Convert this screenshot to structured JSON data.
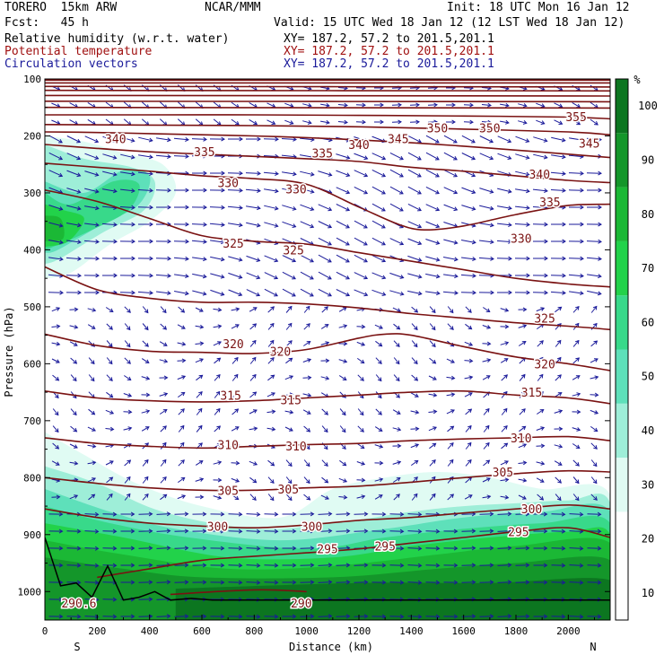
{
  "header": {
    "model": "TORERO  15km ARW",
    "org": "NCAR/MMM",
    "init": "Init: 18 UTC Mon 16 Jan 12",
    "fcst": "Fcst:   45 h",
    "valid": "Valid: 15 UTC Wed 18 Jan 12 (12 LST Wed 18 Jan 12)",
    "fields": [
      {
        "label": "Relative humidity (w.r.t. water)",
        "xy": "XY= 187.2, 57.2 to 201.5,201.1"
      },
      {
        "label": "Potential temperature",
        "xy": "XY= 187.2, 57.2 to 201.5,201.1"
      },
      {
        "label": "Circulation vectors",
        "xy": "XY= 187.2, 57.2 to 201.5,201.1"
      }
    ]
  },
  "colors": {
    "contour": "#7a1212",
    "vector": "#1a1a9a",
    "terrain": "#000000"
  },
  "chart_data": {
    "type": "heatmap",
    "xlabel": "Distance (km)",
    "ylabel": "Pressure (hPa)",
    "xlim": [
      0,
      2160
    ],
    "ylim": [
      1050,
      100
    ],
    "xticks": [
      0,
      200,
      400,
      600,
      800,
      1000,
      1200,
      1400,
      1600,
      1800,
      2000
    ],
    "yticks": [
      100,
      200,
      300,
      400,
      500,
      600,
      700,
      800,
      900,
      1000
    ],
    "x_end_labels": {
      "left": "S",
      "right": "N"
    },
    "colorbar": {
      "unit": "%",
      "levels": [
        10,
        20,
        30,
        40,
        50,
        60,
        70,
        80,
        90,
        100
      ],
      "colors": [
        "#ffffff",
        "#ffffff",
        "#e0fbf3",
        "#9eeed8",
        "#5ee0ba",
        "#38d98a",
        "#22d24a",
        "#1bb835",
        "#14962a",
        "#0c7620"
      ]
    },
    "theta_contours": [
      {
        "value": 290,
        "label": "290",
        "points": [
          [
            480,
            1005
          ],
          [
            800,
            997
          ],
          [
            1000,
            1000
          ]
        ]
      },
      {
        "value": 295,
        "label": "295",
        "points": [
          [
            200,
            975
          ],
          [
            400,
            960
          ],
          [
            600,
            945
          ],
          [
            800,
            938
          ],
          [
            1000,
            932
          ],
          [
            1200,
            925
          ],
          [
            1400,
            915
          ],
          [
            1600,
            905
          ],
          [
            1800,
            895
          ],
          [
            2000,
            888
          ],
          [
            2160,
            905
          ]
        ]
      },
      {
        "value": 300,
        "label": "300",
        "points": [
          [
            0,
            855
          ],
          [
            200,
            870
          ],
          [
            400,
            880
          ],
          [
            600,
            885
          ],
          [
            800,
            888
          ],
          [
            1000,
            883
          ],
          [
            1200,
            875
          ],
          [
            1400,
            870
          ],
          [
            1600,
            862
          ],
          [
            1800,
            855
          ],
          [
            2000,
            848
          ],
          [
            2160,
            855
          ]
        ]
      },
      {
        "value": 305,
        "label": "305",
        "points": [
          [
            0,
            800
          ],
          [
            200,
            810
          ],
          [
            400,
            818
          ],
          [
            600,
            822
          ],
          [
            800,
            822
          ],
          [
            1000,
            818
          ],
          [
            1200,
            815
          ],
          [
            1400,
            808
          ],
          [
            1600,
            800
          ],
          [
            1800,
            793
          ],
          [
            2000,
            788
          ],
          [
            2160,
            790
          ]
        ]
      },
      {
        "value": 310,
        "label": "310",
        "points": [
          [
            0,
            730
          ],
          [
            200,
            740
          ],
          [
            400,
            745
          ],
          [
            600,
            748
          ],
          [
            800,
            745
          ],
          [
            1000,
            742
          ],
          [
            1200,
            740
          ],
          [
            1400,
            735
          ],
          [
            1600,
            732
          ],
          [
            1800,
            730
          ],
          [
            2000,
            728
          ],
          [
            2160,
            735
          ]
        ]
      },
      {
        "value": 315,
        "label": "315",
        "points": [
          [
            0,
            648
          ],
          [
            200,
            660
          ],
          [
            400,
            665
          ],
          [
            600,
            667
          ],
          [
            800,
            665
          ],
          [
            1000,
            660
          ],
          [
            1200,
            655
          ],
          [
            1400,
            650
          ],
          [
            1600,
            648
          ],
          [
            1800,
            655
          ],
          [
            2000,
            660
          ],
          [
            2160,
            670
          ]
        ]
      },
      {
        "value": 320,
        "label": "320",
        "points": [
          [
            0,
            548
          ],
          [
            200,
            568
          ],
          [
            400,
            578
          ],
          [
            600,
            580
          ],
          [
            800,
            582
          ],
          [
            1000,
            575
          ],
          [
            1200,
            555
          ],
          [
            1300,
            548
          ],
          [
            1400,
            550
          ],
          [
            1600,
            570
          ],
          [
            1800,
            588
          ],
          [
            2000,
            600
          ],
          [
            2160,
            612
          ]
        ]
      },
      {
        "value": 325,
        "label": "325",
        "points": [
          [
            0,
            430
          ],
          [
            200,
            470
          ],
          [
            400,
            485
          ],
          [
            600,
            492
          ],
          [
            800,
            492
          ],
          [
            1000,
            495
          ],
          [
            1200,
            502
          ],
          [
            1400,
            512
          ],
          [
            1600,
            520
          ],
          [
            1800,
            528
          ],
          [
            2000,
            534
          ],
          [
            2160,
            540
          ]
        ]
      },
      {
        "value": 330,
        "label": "330",
        "points": [
          [
            0,
            295
          ],
          [
            200,
            315
          ],
          [
            400,
            345
          ],
          [
            600,
            375
          ],
          [
            800,
            385
          ],
          [
            1000,
            390
          ],
          [
            1200,
            405
          ],
          [
            1400,
            420
          ],
          [
            1600,
            435
          ],
          [
            1800,
            450
          ],
          [
            2000,
            460
          ],
          [
            2160,
            465
          ]
        ]
      },
      {
        "value": 335,
        "label": "335",
        "points": [
          [
            0,
            248
          ],
          [
            200,
            255
          ],
          [
            400,
            262
          ],
          [
            600,
            270
          ],
          [
            800,
            275
          ],
          [
            1000,
            285
          ],
          [
            1200,
            325
          ],
          [
            1350,
            355
          ],
          [
            1450,
            365
          ],
          [
            1600,
            358
          ],
          [
            1800,
            338
          ],
          [
            2000,
            322
          ],
          [
            2160,
            320
          ]
        ]
      },
      {
        "value": 340,
        "label": "340",
        "points": [
          [
            0,
            215
          ],
          [
            200,
            222
          ],
          [
            400,
            228
          ],
          [
            600,
            232
          ],
          [
            800,
            236
          ],
          [
            1000,
            240
          ],
          [
            1200,
            245
          ],
          [
            1400,
            255
          ],
          [
            1600,
            262
          ],
          [
            1800,
            270
          ],
          [
            2000,
            278
          ],
          [
            2160,
            282
          ]
        ]
      },
      {
        "value": 345,
        "label": "345",
        "points": [
          [
            0,
            193
          ],
          [
            200,
            194
          ],
          [
            400,
            196
          ],
          [
            600,
            198
          ],
          [
            800,
            200
          ],
          [
            1000,
            203
          ],
          [
            1200,
            207
          ],
          [
            1400,
            212
          ],
          [
            1600,
            218
          ],
          [
            1800,
            225
          ],
          [
            2000,
            232
          ],
          [
            2160,
            238
          ]
        ]
      },
      {
        "value": 350,
        "label": "350",
        "points": [
          [
            0,
            180
          ],
          [
            400,
            181
          ],
          [
            800,
            182
          ],
          [
            1200,
            184
          ],
          [
            1600,
            188
          ],
          [
            2000,
            193
          ],
          [
            2160,
            198
          ]
        ]
      },
      {
        "value": 355,
        "label": "355",
        "points": [
          [
            0,
            163
          ],
          [
            400,
            163
          ],
          [
            800,
            163
          ],
          [
            1200,
            164
          ],
          [
            1600,
            165
          ],
          [
            2000,
            167
          ],
          [
            2160,
            170
          ]
        ]
      },
      {
        "value": 360,
        "label": "",
        "points": [
          [
            0,
            150
          ],
          [
            2160,
            151
          ]
        ]
      },
      {
        "value": 365,
        "label": "",
        "points": [
          [
            0,
            139
          ],
          [
            2160,
            140
          ]
        ]
      },
      {
        "value": 370,
        "label": "",
        "points": [
          [
            0,
            129
          ],
          [
            2160,
            130
          ]
        ]
      },
      {
        "value": 375,
        "label": "",
        "points": [
          [
            0,
            120
          ],
          [
            2160,
            121
          ]
        ]
      },
      {
        "value": 380,
        "label": "",
        "points": [
          [
            0,
            113
          ],
          [
            2160,
            114
          ]
        ]
      },
      {
        "value": 385,
        "label": "",
        "points": [
          [
            0,
            107
          ],
          [
            2160,
            107
          ]
        ]
      },
      {
        "value": 390,
        "label": "",
        "points": [
          [
            0,
            102
          ],
          [
            2160,
            102
          ]
        ]
      }
    ],
    "theta_labels": [
      {
        "text": "340",
        "x": 270,
        "p": 205
      },
      {
        "text": "335",
        "x": 610,
        "p": 228
      },
      {
        "text": "330",
        "x": 700,
        "p": 282
      },
      {
        "text": "325",
        "x": 720,
        "p": 388
      },
      {
        "text": "320",
        "x": 720,
        "p": 565
      },
      {
        "text": "315",
        "x": 710,
        "p": 655
      },
      {
        "text": "310",
        "x": 700,
        "p": 742
      },
      {
        "text": "305",
        "x": 700,
        "p": 822
      },
      {
        "text": "300",
        "x": 660,
        "p": 885
      },
      {
        "text": "295",
        "x": 1080,
        "p": 925
      },
      {
        "text": "290.6",
        "x": 130,
        "p": 1020
      },
      {
        "text": "290",
        "x": 980,
        "p": 1020
      },
      {
        "text": "330",
        "x": 960,
        "p": 293
      },
      {
        "text": "325",
        "x": 950,
        "p": 400
      },
      {
        "text": "320",
        "x": 900,
        "p": 578
      },
      {
        "text": "315",
        "x": 940,
        "p": 663
      },
      {
        "text": "310",
        "x": 960,
        "p": 744
      },
      {
        "text": "305",
        "x": 930,
        "p": 820
      },
      {
        "text": "300",
        "x": 1020,
        "p": 885
      },
      {
        "text": "295",
        "x": 1300,
        "p": 920
      },
      {
        "text": "335",
        "x": 1060,
        "p": 230
      },
      {
        "text": "340",
        "x": 1200,
        "p": 215
      },
      {
        "text": "345",
        "x": 1350,
        "p": 205
      },
      {
        "text": "350",
        "x": 1500,
        "p": 186
      },
      {
        "text": "350",
        "x": 1700,
        "p": 186
      },
      {
        "text": "355",
        "x": 2030,
        "p": 166
      },
      {
        "text": "345",
        "x": 2080,
        "p": 213
      },
      {
        "text": "340",
        "x": 1890,
        "p": 267
      },
      {
        "text": "335",
        "x": 1930,
        "p": 316
      },
      {
        "text": "330",
        "x": 1820,
        "p": 380
      },
      {
        "text": "325",
        "x": 1910,
        "p": 520
      },
      {
        "text": "320",
        "x": 1910,
        "p": 600
      },
      {
        "text": "315",
        "x": 1860,
        "p": 650
      },
      {
        "text": "310",
        "x": 1820,
        "p": 730
      },
      {
        "text": "305",
        "x": 1750,
        "p": 790
      },
      {
        "text": "300",
        "x": 1860,
        "p": 855
      },
      {
        "text": "295",
        "x": 1810,
        "p": 895
      }
    ],
    "terrain": [
      [
        0,
        905
      ],
      [
        60,
        990
      ],
      [
        120,
        985
      ],
      [
        180,
        1010
      ],
      [
        240,
        955
      ],
      [
        300,
        1015
      ],
      [
        360,
        1010
      ],
      [
        420,
        1000
      ],
      [
        480,
        1015
      ],
      [
        560,
        1012
      ],
      [
        640,
        1015
      ],
      [
        2160,
        1015
      ]
    ]
  }
}
